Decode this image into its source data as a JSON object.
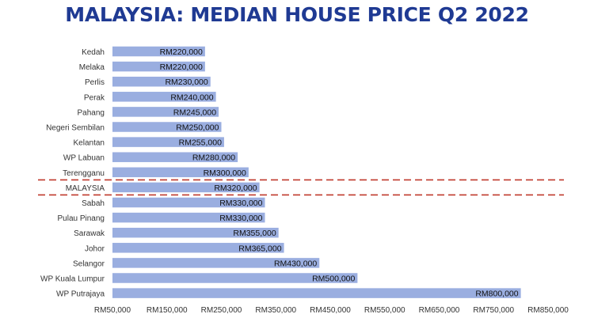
{
  "chart_data": {
    "type": "bar",
    "orientation": "horizontal",
    "title": "MALAYSIA: MEDIAN HOUSE PRICE Q2 2022",
    "categories": [
      "Kedah",
      "Melaka",
      "Perlis",
      "Perak",
      "Pahang",
      "Negeri Sembilan",
      "Kelantan",
      "WP Labuan",
      "Terengganu",
      "MALAYSIA",
      "Sabah",
      "Pulau Pinang",
      "Sarawak",
      "Johor",
      "Selangor",
      "WP Kuala Lumpur",
      "WP Putrajaya"
    ],
    "values": [
      220000,
      220000,
      230000,
      240000,
      245000,
      250000,
      255000,
      280000,
      300000,
      320000,
      330000,
      330000,
      355000,
      365000,
      430000,
      500000,
      800000
    ],
    "data_labels": [
      "RM220,000",
      "RM220,000",
      "RM230,000",
      "RM240,000",
      "RM245,000",
      "RM250,000",
      "RM255,000",
      "RM280,000",
      "RM300,000",
      "RM320,000",
      "RM330,000",
      "RM330,000",
      "RM355,000",
      "RM365,000",
      "RM430,000",
      "RM500,000",
      "RM800,000"
    ],
    "x_ticks": [
      50000,
      150000,
      250000,
      350000,
      450000,
      550000,
      650000,
      750000,
      850000
    ],
    "x_tick_labels": [
      "RM50,000",
      "RM150,000",
      "RM250,000",
      "RM350,000",
      "RM450,000",
      "RM550,000",
      "RM650,000",
      "RM750,000",
      "RM850,000"
    ],
    "xlim": [
      50000,
      850000
    ],
    "highlight_category": "MALAYSIA",
    "grid": false,
    "colors": {
      "bar": "#9aaee0",
      "title": "#1f3a93",
      "highlight_line": "#c0392b",
      "label": "#333333"
    }
  }
}
